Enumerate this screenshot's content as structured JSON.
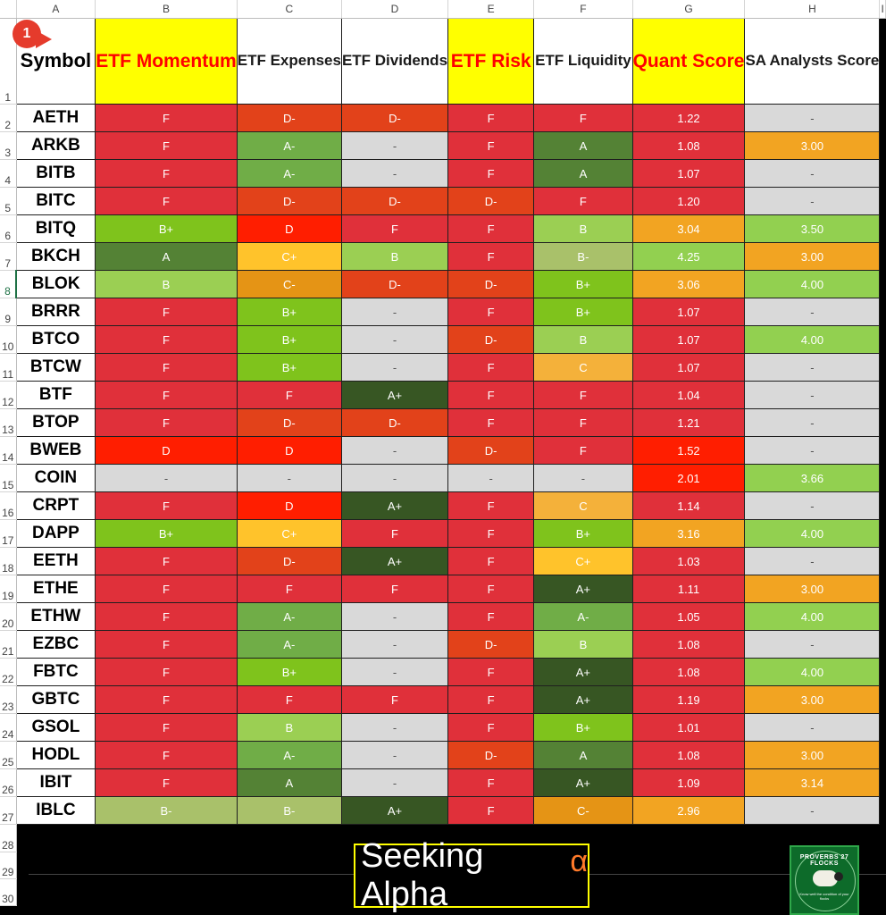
{
  "badge": "1",
  "column_letters": [
    "A",
    "B",
    "C",
    "D",
    "E",
    "F",
    "G",
    "H",
    "I"
  ],
  "headers": {
    "symbol": "Symbol",
    "momentum": "ETF Momentum",
    "expenses": "ETF Expenses",
    "dividends": "ETF Dividends",
    "risk": "ETF Risk",
    "liquidity": "ETF Liquidity",
    "quant": "Quant Score",
    "analysts": "SA Analysts Score"
  },
  "rows": [
    {
      "row": "2",
      "symbol": "AETH",
      "momentum": "F",
      "expenses": "D-",
      "dividends": "D-",
      "risk": "F",
      "liquidity": "F",
      "quant": "1.22",
      "analysts": "-"
    },
    {
      "row": "3",
      "symbol": "ARKB",
      "momentum": "F",
      "expenses": "A-",
      "dividends": "-",
      "risk": "F",
      "liquidity": "A",
      "quant": "1.08",
      "analysts": "3.00"
    },
    {
      "row": "4",
      "symbol": "BITB",
      "momentum": "F",
      "expenses": "A-",
      "dividends": "-",
      "risk": "F",
      "liquidity": "A",
      "quant": "1.07",
      "analysts": "-"
    },
    {
      "row": "5",
      "symbol": "BITC",
      "momentum": "F",
      "expenses": "D-",
      "dividends": "D-",
      "risk": "D-",
      "liquidity": "F",
      "quant": "1.20",
      "analysts": "-"
    },
    {
      "row": "6",
      "symbol": "BITQ",
      "momentum": "B+",
      "expenses": "D",
      "dividends": "F",
      "risk": "F",
      "liquidity": "B",
      "quant": "3.04",
      "analysts": "3.50"
    },
    {
      "row": "7",
      "symbol": "BKCH",
      "momentum": "A",
      "expenses": "C+",
      "dividends": "B",
      "risk": "F",
      "liquidity": "B-",
      "quant": "4.25",
      "analysts": "3.00"
    },
    {
      "row": "8",
      "symbol": "BLOK",
      "momentum": "B",
      "expenses": "C-",
      "dividends": "D-",
      "risk": "D-",
      "liquidity": "B+",
      "quant": "3.06",
      "analysts": "4.00"
    },
    {
      "row": "9",
      "symbol": "BRRR",
      "momentum": "F",
      "expenses": "B+",
      "dividends": "-",
      "risk": "F",
      "liquidity": "B+",
      "quant": "1.07",
      "analysts": "-"
    },
    {
      "row": "10",
      "symbol": "BTCO",
      "momentum": "F",
      "expenses": "B+",
      "dividends": "-",
      "risk": "D-",
      "liquidity": "B",
      "quant": "1.07",
      "analysts": "4.00"
    },
    {
      "row": "11",
      "symbol": "BTCW",
      "momentum": "F",
      "expenses": "B+",
      "dividends": "-",
      "risk": "F",
      "liquidity": "C",
      "quant": "1.07",
      "analysts": "-"
    },
    {
      "row": "12",
      "symbol": "BTF",
      "momentum": "F",
      "expenses": "F",
      "dividends": "A+",
      "risk": "F",
      "liquidity": "F",
      "quant": "1.04",
      "analysts": "-"
    },
    {
      "row": "13",
      "symbol": "BTOP",
      "momentum": "F",
      "expenses": "D-",
      "dividends": "D-",
      "risk": "F",
      "liquidity": "F",
      "quant": "1.21",
      "analysts": "-"
    },
    {
      "row": "14",
      "symbol": "BWEB",
      "momentum": "D",
      "expenses": "D",
      "dividends": "-",
      "risk": "D-",
      "liquidity": "F",
      "quant": "1.52",
      "analysts": "-"
    },
    {
      "row": "15",
      "symbol": "COIN",
      "momentum": "-",
      "expenses": "-",
      "dividends": "-",
      "risk": "-",
      "liquidity": "-",
      "quant": "2.01",
      "analysts": "3.66"
    },
    {
      "row": "16",
      "symbol": "CRPT",
      "momentum": "F",
      "expenses": "D",
      "dividends": "A+",
      "risk": "F",
      "liquidity": "C",
      "quant": "1.14",
      "analysts": "-"
    },
    {
      "row": "17",
      "symbol": "DAPP",
      "momentum": "B+",
      "expenses": "C+",
      "dividends": "F",
      "risk": "F",
      "liquidity": "B+",
      "quant": "3.16",
      "analysts": "4.00"
    },
    {
      "row": "18",
      "symbol": "EETH",
      "momentum": "F",
      "expenses": "D-",
      "dividends": "A+",
      "risk": "F",
      "liquidity": "C+",
      "quant": "1.03",
      "analysts": "-"
    },
    {
      "row": "19",
      "symbol": "ETHE",
      "momentum": "F",
      "expenses": "F",
      "dividends": "F",
      "risk": "F",
      "liquidity": "A+",
      "quant": "1.11",
      "analysts": "3.00"
    },
    {
      "row": "20",
      "symbol": "ETHW",
      "momentum": "F",
      "expenses": "A-",
      "dividends": "-",
      "risk": "F",
      "liquidity": "A-",
      "quant": "1.05",
      "analysts": "4.00"
    },
    {
      "row": "21",
      "symbol": "EZBC",
      "momentum": "F",
      "expenses": "A-",
      "dividends": "-",
      "risk": "D-",
      "liquidity": "B",
      "quant": "1.08",
      "analysts": "-"
    },
    {
      "row": "22",
      "symbol": "FBTC",
      "momentum": "F",
      "expenses": "B+",
      "dividends": "-",
      "risk": "F",
      "liquidity": "A+",
      "quant": "1.08",
      "analysts": "4.00"
    },
    {
      "row": "23",
      "symbol": "GBTC",
      "momentum": "F",
      "expenses": "F",
      "dividends": "F",
      "risk": "F",
      "liquidity": "A+",
      "quant": "1.19",
      "analysts": "3.00"
    },
    {
      "row": "24",
      "symbol": "GSOL",
      "momentum": "F",
      "expenses": "B",
      "dividends": "-",
      "risk": "F",
      "liquidity": "B+",
      "quant": "1.01",
      "analysts": "-"
    },
    {
      "row": "25",
      "symbol": "HODL",
      "momentum": "F",
      "expenses": "A-",
      "dividends": "-",
      "risk": "D-",
      "liquidity": "A",
      "quant": "1.08",
      "analysts": "3.00"
    },
    {
      "row": "26",
      "symbol": "IBIT",
      "momentum": "F",
      "expenses": "A",
      "dividends": "-",
      "risk": "F",
      "liquidity": "A+",
      "quant": "1.09",
      "analysts": "3.14"
    },
    {
      "row": "27",
      "symbol": "IBLC",
      "momentum": "B-",
      "expenses": "B-",
      "dividends": "A+",
      "risk": "F",
      "liquidity": "C-",
      "quant": "2.96",
      "analysts": "-"
    }
  ],
  "blank_rows": [
    "28",
    "29",
    "30"
  ],
  "grade_colors": {
    "A+": "#375623",
    "A": "#548235",
    "A-": "#70ad47",
    "B+": "#7fc31c",
    "B": "#9bcf53",
    "B-": "#a9c16a",
    "C+": "#ffc32b",
    "C": "#f4b13a",
    "C-": "#e59415",
    "D": "#ff1e00",
    "D-": "#e2421a",
    "F": "#e0303a",
    "-": "#d9d9d9"
  },
  "score_colors": {
    "red": "#ff1e00",
    "redf": "#e0303a",
    "orange": "#f2a422",
    "green": "#92d050",
    "grey": "#d9d9d9"
  },
  "logos": {
    "seeking_alpha": "Seeking Alpha",
    "alpha_symbol": "α",
    "proverbs_ring": "PROVERBS 27 FLOCKS",
    "proverbs_sub": "Know well the condition of your flocks"
  }
}
